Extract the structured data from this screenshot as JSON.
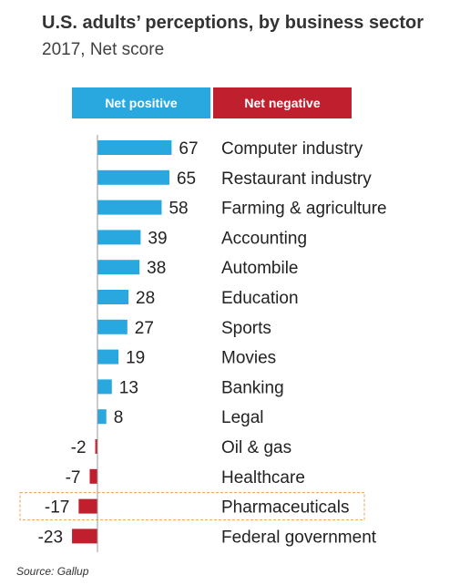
{
  "title": "U.S. adults’ perceptions, by business sector",
  "subtitle": "2017, Net score",
  "legend": {
    "positive_label": "Net positive",
    "negative_label": "Net negative"
  },
  "colors": {
    "positive": "#29a8df",
    "negative": "#c0202e",
    "highlight_border": "#f0a050",
    "axis": "#999999"
  },
  "source": "Source: Gallup",
  "chart_data": {
    "type": "bar",
    "orientation": "horizontal",
    "title": "U.S. adults’ perceptions, by business sector",
    "subtitle": "2017, Net score",
    "categories": [
      "Computer industry",
      "Restaurant industry",
      "Farming & agriculture",
      "Accounting",
      "Autombile",
      "Education",
      "Sports",
      "Movies",
      "Banking",
      "Legal",
      "Oil & gas",
      "Healthcare",
      "Pharmaceuticals",
      "Federal government"
    ],
    "values": [
      67,
      65,
      58,
      39,
      38,
      28,
      27,
      19,
      13,
      8,
      -2,
      -7,
      -17,
      -23
    ],
    "value_labels": [
      "67",
      "65",
      "58",
      "39",
      "38",
      "28",
      "27",
      "19",
      "13",
      "8",
      "-2",
      "-7",
      "-17",
      "-23"
    ],
    "legend": [
      "Net positive",
      "Net negative"
    ],
    "highlighted_category": "Pharmaceuticals",
    "grid": false
  }
}
